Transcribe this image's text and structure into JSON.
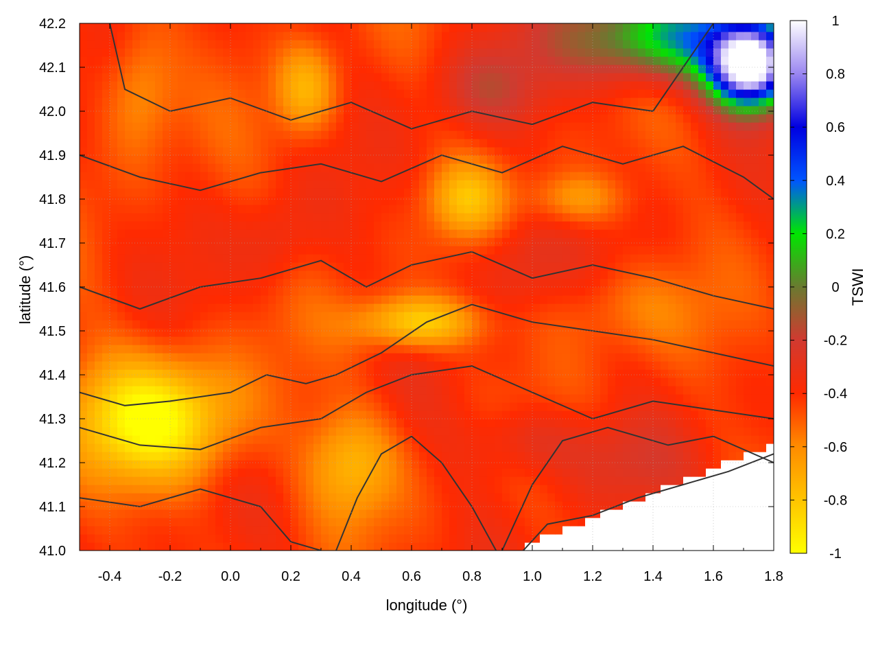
{
  "chart_data": {
    "type": "heatmap",
    "title": "",
    "xlabel": "longitude (°)",
    "ylabel": "latitude (°)",
    "colorbar_label": "TSWI",
    "xlim": [
      -0.5,
      1.8
    ],
    "ylim": [
      41.0,
      42.2
    ],
    "x_ticks": [
      "-0.4",
      "-0.2",
      "0.0",
      "0.2",
      "0.4",
      "0.6",
      "0.8",
      "1.0",
      "1.2",
      "1.4",
      "1.6",
      "1.8"
    ],
    "y_ticks": [
      "41.0",
      "41.1",
      "41.2",
      "41.3",
      "41.4",
      "41.5",
      "41.6",
      "41.7",
      "41.8",
      "41.9",
      "42.0",
      "42.1",
      "42.2"
    ],
    "colorbar_range": [
      -1,
      1
    ],
    "colorbar_ticks": [
      "-1",
      "-0.8",
      "-0.6",
      "-0.4",
      "-0.2",
      "0",
      "0.2",
      "0.4",
      "0.6",
      "0.8",
      "1"
    ],
    "colorbar_stops": [
      {
        "value": -1.0,
        "color": "#ffff00"
      },
      {
        "value": -0.8,
        "color": "#ffc400"
      },
      {
        "value": -0.6,
        "color": "#ff8c00"
      },
      {
        "value": -0.4,
        "color": "#ff2a00"
      },
      {
        "value": -0.2,
        "color": "#d13a30"
      },
      {
        "value": 0.0,
        "color": "#6a7a30"
      },
      {
        "value": 0.2,
        "color": "#00e600"
      },
      {
        "value": 0.4,
        "color": "#0055ff"
      },
      {
        "value": 0.6,
        "color": "#0000e0"
      },
      {
        "value": 0.8,
        "color": "#9a86f0"
      },
      {
        "value": 1.0,
        "color": "#ffffff"
      }
    ],
    "grid": true,
    "contour_color": "#333333"
  }
}
